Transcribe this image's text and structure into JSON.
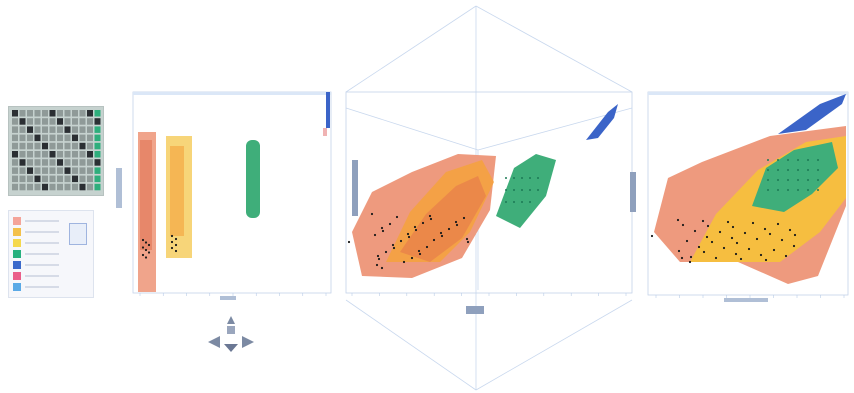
{
  "panels": {
    "left": {
      "xlabel": "",
      "ylabel": ""
    },
    "center": {
      "xlabel": "",
      "ylabel": ""
    },
    "right": {
      "xlabel": "",
      "ylabel": ""
    }
  },
  "colors": {
    "salmon": "#ee9a7e",
    "orange": "#f4a23c",
    "yellow": "#f7dc6a",
    "green": "#3fae7a",
    "blue": "#3b64c8",
    "axis": "#b8cbe6",
    "dot": "#1a1a1a"
  },
  "legend_swatches": [
    "#f4a49a",
    "#f3c04a",
    "#f5d84d",
    "#27b07f",
    "#3b6acb",
    "#ea5e89",
    "#5aa9e6"
  ],
  "icons": {
    "view_cube": "view-cube-icon",
    "nav_arrows": "navigation-arrows-icon"
  }
}
